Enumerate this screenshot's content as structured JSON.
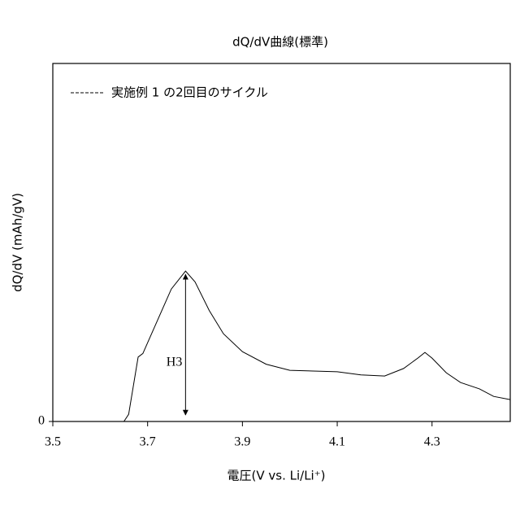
{
  "chart_data": {
    "type": "line",
    "title": "dQ/dV曲線(標準)",
    "x_label": "電圧(V vs. Li/Li⁺)",
    "y_label": "dQ/dV (mAh/gV)",
    "xlim": [
      3.5,
      4.465
    ],
    "ylim": [
      0,
      100
    ],
    "xticks": [
      3.5,
      3.7,
      3.9,
      4.1,
      4.3
    ],
    "yticks": [
      0
    ],
    "legend": "top-left",
    "grid": false,
    "series": [
      {
        "name": "実施例 1 の2回目のサイクル",
        "color": "#000000",
        "x": [
          3.5,
          3.6,
          3.65,
          3.66,
          3.68,
          3.69,
          3.7,
          3.72,
          3.75,
          3.78,
          3.8,
          3.83,
          3.86,
          3.9,
          3.95,
          4.0,
          4.1,
          4.15,
          4.2,
          4.24,
          4.27,
          4.285,
          4.3,
          4.33,
          4.36,
          4.4,
          4.43,
          4.465
        ],
        "values": [
          0,
          0,
          0,
          2,
          18,
          19,
          22,
          28,
          37,
          42,
          39,
          31,
          24.5,
          19.5,
          16,
          14.3,
          13.9,
          13,
          12.7,
          14.8,
          17.7,
          19.3,
          17.7,
          13.6,
          10.9,
          9.1,
          7,
          6.1
        ]
      }
    ],
    "annotation": {
      "text": "H3",
      "x": 3.78,
      "from": 0,
      "to": 42
    }
  }
}
